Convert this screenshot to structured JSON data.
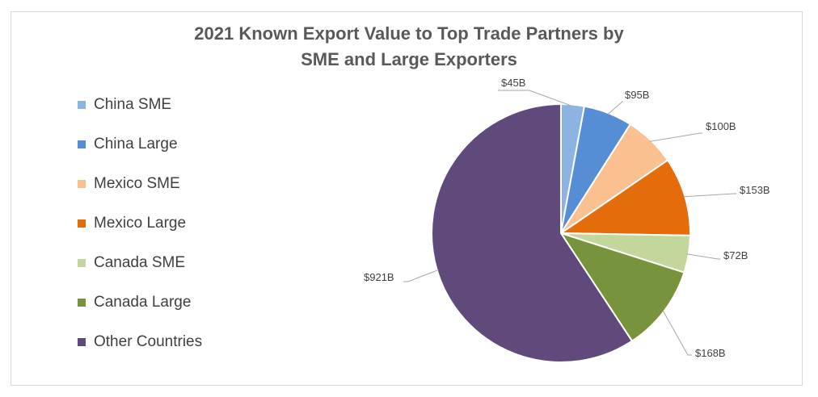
{
  "chart_data": {
    "type": "pie",
    "title_line1": "2021 Known Export Value to Top Trade Partners by",
    "title_line2": "SME and Large Exporters",
    "categories": [
      "China SME",
      "China Large",
      "Mexico SME",
      "Mexico Large",
      "Canada SME",
      "Canada Large",
      "Other Countries"
    ],
    "values": [
      45,
      95,
      100,
      153,
      72,
      168,
      921
    ],
    "value_labels": [
      "$45B",
      "$95B",
      "$100B",
      "$153B",
      "$72B",
      "$168B",
      "$921B"
    ],
    "colors": [
      "#8db3e2",
      "#558ed5",
      "#fac090",
      "#e46c0a",
      "#c3d69b",
      "#77933c",
      "#604a7b"
    ],
    "legend_position": "left"
  }
}
